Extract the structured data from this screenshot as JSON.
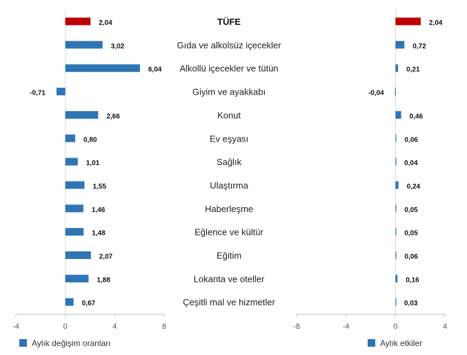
{
  "chart_data": {
    "type": "bar",
    "orientation": "horizontal",
    "categories": [
      "TÜFE",
      "Gıda ve alkolsüz içecekler",
      "Alkollü içecekler ve tütün",
      "Giyim ve ayakkabı",
      "Konut",
      "Ev eşyası",
      "Sağlık",
      "Ulaştırma",
      "Haberleşme",
      "Eğlence ve kültür",
      "Eğitim",
      "Lokanta ve oteller",
      "Çeşitli mal ve hizmetler"
    ],
    "highlight_index": 0,
    "colors": {
      "series": "#2e75b6",
      "highlight": "#c00000",
      "axis": "#bfbfbf"
    },
    "panels": [
      {
        "name": "Aylık değişim oranları",
        "values": [
          2.04,
          3.02,
          6.04,
          -0.71,
          2.66,
          0.8,
          1.01,
          1.55,
          1.46,
          1.48,
          2.07,
          1.88,
          0.67
        ],
        "labels": [
          "2,04",
          "3,02",
          "6,04",
          "-0,71",
          "2,66",
          "0,80",
          "1,01",
          "1,55",
          "1,46",
          "1,48",
          "2,07",
          "1,88",
          "0,67"
        ],
        "xlim": [
          -4,
          8
        ],
        "ticks": [
          -4,
          0,
          4,
          8
        ],
        "tick_labels": [
          "-4",
          "0",
          "4",
          "8"
        ]
      },
      {
        "name": "Aylık etkiler",
        "values": [
          2.04,
          0.72,
          0.21,
          -0.04,
          0.46,
          0.06,
          0.04,
          0.24,
          0.05,
          0.05,
          0.06,
          0.16,
          0.03
        ],
        "labels": [
          "2,04",
          "0,72",
          "0,21",
          "-0,04",
          "0,46",
          "0,06",
          "0,04",
          "0,24",
          "0,05",
          "0,05",
          "0,06",
          "0,16",
          "0,03"
        ],
        "xlim": [
          -8,
          4
        ],
        "ticks": [
          -8,
          -4,
          0,
          4
        ],
        "tick_labels": [
          "-8",
          "-4",
          "0",
          "4"
        ]
      }
    ],
    "grid": false,
    "legend_position": "bottom-left"
  }
}
